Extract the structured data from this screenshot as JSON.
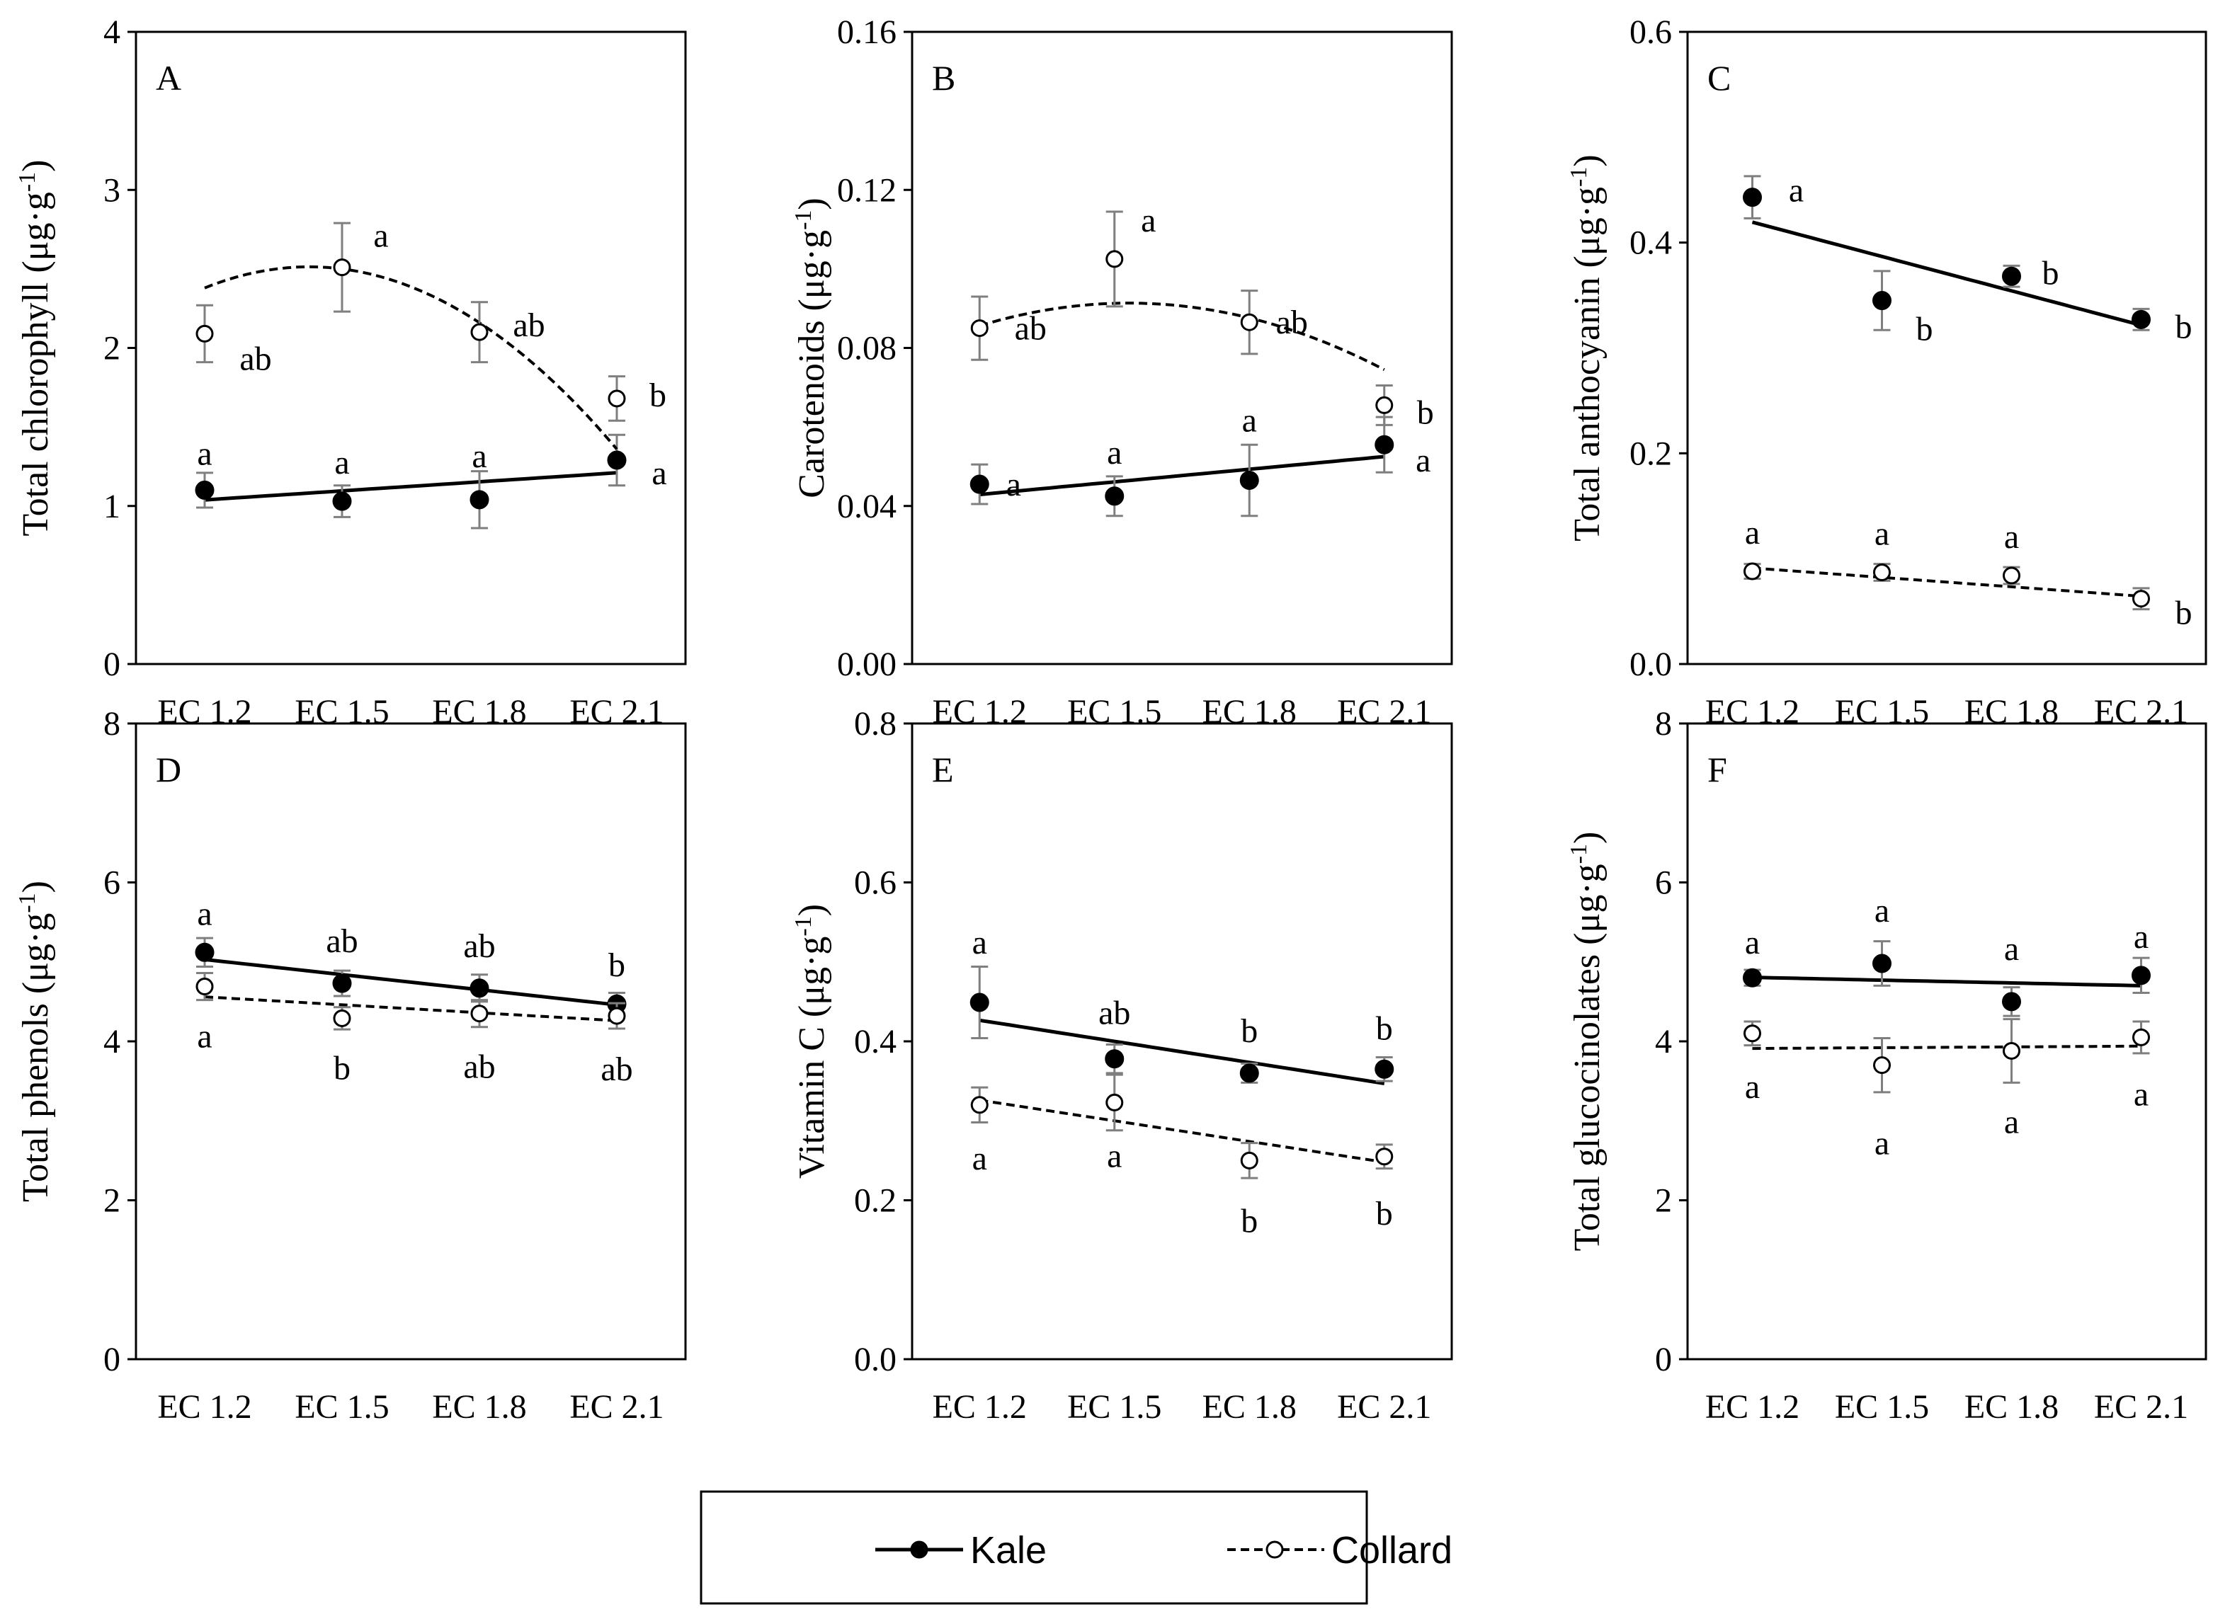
{
  "chart_data": [
    {
      "type": "line",
      "panel": "A",
      "ylabel": "Total chlorophyll",
      "yunit": "(μg·g-1)",
      "ylim": [
        0,
        4
      ],
      "yticks": [
        0,
        1,
        2,
        3,
        4
      ],
      "ytick_labels": [
        "0",
        "1",
        "2",
        "3",
        "4"
      ],
      "categories": [
        "EC 1.2",
        "EC 1.5",
        "EC 1.8",
        "EC 2.1"
      ],
      "series": [
        {
          "name": "Kale",
          "values": [
            1.1,
            1.03,
            1.04,
            1.29
          ],
          "errors": [
            0.11,
            0.1,
            0.18,
            0.16
          ],
          "letters": [
            "a",
            "a",
            "a",
            "a"
          ],
          "trend": "linear",
          "trend_coef": [
            0.981,
            0.0573
          ]
        },
        {
          "name": "Collard",
          "values": [
            2.09,
            2.51,
            2.1,
            1.68
          ],
          "errors": [
            0.18,
            0.28,
            0.19,
            0.14
          ],
          "letters": [
            "ab",
            "a",
            "ab",
            "b"
          ],
          "trend": "quadratic",
          "trend_coef": [
            1.8,
            0.81,
            -0.23
          ]
        }
      ]
    },
    {
      "type": "line",
      "panel": "B",
      "ylabel": "Carotenoids",
      "yunit": "(μg·g-1)",
      "ylim": [
        0,
        0.16
      ],
      "yticks": [
        0,
        0.04,
        0.08,
        0.12,
        0.16
      ],
      "ytick_labels": [
        "0.00",
        "0.04",
        "0.08",
        "0.12",
        "0.16"
      ],
      "categories": [
        "EC 1.2",
        "EC 1.5",
        "EC 1.8",
        "EC 2.1"
      ],
      "series": [
        {
          "name": "Kale",
          "values": [
            0.0455,
            0.0425,
            0.0465,
            0.0555
          ],
          "errors": [
            0.005,
            0.005,
            0.009,
            0.007
          ],
          "letters": [
            "a",
            "a",
            "a",
            "a"
          ],
          "trend": "linear",
          "trend_coef": [
            0.0397,
            0.0032
          ]
        },
        {
          "name": "Collard",
          "values": [
            0.085,
            0.1025,
            0.0865,
            0.0655
          ],
          "errors": [
            0.008,
            0.012,
            0.008,
            0.005
          ],
          "letters": [
            "ab",
            "a",
            "ab",
            "b"
          ],
          "trend": "quadratic",
          "trend_coef": [
            0.0705,
            0.0198,
            -0.0047
          ]
        }
      ]
    },
    {
      "type": "line",
      "panel": "C",
      "ylabel": "Total anthocyanin",
      "yunit": "(μg·g-1)",
      "ylim": [
        0,
        0.6
      ],
      "yticks": [
        0,
        0.2,
        0.4,
        0.6
      ],
      "ytick_labels": [
        "0.0",
        "0.2",
        "0.4",
        "0.6"
      ],
      "categories": [
        "EC 1.2",
        "EC 1.5",
        "EC 1.8",
        "EC 2.1"
      ],
      "series": [
        {
          "name": "Kale",
          "values": [
            0.443,
            0.345,
            0.368,
            0.327
          ],
          "errors": [
            0.02,
            0.028,
            0.01,
            0.01
          ],
          "letters": [
            "a",
            "b",
            "b",
            "b"
          ],
          "trend": "linear",
          "trend_coef": [
            0.452,
            -0.0326
          ]
        },
        {
          "name": "Collard",
          "values": [
            0.088,
            0.087,
            0.084,
            0.062
          ],
          "errors": [
            0.007,
            0.008,
            0.008,
            0.01
          ],
          "letters": [
            "a",
            "a",
            "a",
            "b"
          ],
          "trend": "linear",
          "trend_coef": [
            0.1,
            -0.0089
          ]
        }
      ]
    },
    {
      "type": "line",
      "panel": "D",
      "ylabel": "Total phenols",
      "yunit": "(μg·g-1)",
      "ylim": [
        0,
        8
      ],
      "yticks": [
        0,
        2,
        4,
        6,
        8
      ],
      "ytick_labels": [
        "0",
        "2",
        "4",
        "6",
        "8"
      ],
      "categories": [
        "EC 1.2",
        "EC 1.5",
        "EC 1.8",
        "EC 2.1"
      ],
      "series": [
        {
          "name": "Kale",
          "values": [
            5.12,
            4.73,
            4.67,
            4.47
          ],
          "errors": [
            0.18,
            0.16,
            0.17,
            0.14
          ],
          "letters": [
            "a",
            "ab",
            "ab",
            "b"
          ],
          "trend": "linear",
          "trend_coef": [
            5.22,
            -0.19
          ]
        },
        {
          "name": "Collard",
          "values": [
            4.69,
            4.29,
            4.35,
            4.32
          ],
          "errors": [
            0.17,
            0.14,
            0.17,
            0.16
          ],
          "letters": [
            "a",
            "b",
            "ab",
            "ab"
          ],
          "trend": "linear",
          "trend_coef": [
            4.66,
            -0.1
          ]
        }
      ]
    },
    {
      "type": "line",
      "panel": "E",
      "ylabel": "Vitamin C",
      "yunit": "(μg·g-1)",
      "ylim": [
        0,
        0.8
      ],
      "yticks": [
        0,
        0.2,
        0.4,
        0.6,
        0.8
      ],
      "ytick_labels": [
        "0.0",
        "0.2",
        "0.4",
        "0.6",
        "0.8"
      ],
      "categories": [
        "EC 1.2",
        "EC 1.5",
        "EC 1.8",
        "EC 2.1"
      ],
      "series": [
        {
          "name": "Kale",
          "values": [
            0.449,
            0.378,
            0.36,
            0.365
          ],
          "errors": [
            0.045,
            0.018,
            0.012,
            0.015
          ],
          "letters": [
            "a",
            "ab",
            "b",
            "b"
          ],
          "trend": "linear",
          "trend_coef": [
            0.453,
            -0.0265
          ]
        },
        {
          "name": "Collard",
          "values": [
            0.32,
            0.323,
            0.25,
            0.255
          ],
          "errors": [
            0.022,
            0.035,
            0.022,
            0.015
          ],
          "letters": [
            "a",
            "a",
            "b",
            "b"
          ],
          "trend": "linear",
          "trend_coef": [
            0.352,
            -0.026
          ]
        }
      ]
    },
    {
      "type": "line",
      "panel": "F",
      "ylabel": "Total glucocinolates",
      "yunit": "(μg·g-1)",
      "ylim": [
        0,
        8
      ],
      "yticks": [
        0,
        2,
        4,
        6,
        8
      ],
      "ytick_labels": [
        "0",
        "2",
        "4",
        "6",
        "8"
      ],
      "categories": [
        "EC 1.2",
        "EC 1.5",
        "EC 1.8",
        "EC 2.1"
      ],
      "series": [
        {
          "name": "Kale",
          "values": [
            4.8,
            4.98,
            4.5,
            4.83
          ],
          "errors": [
            0.1,
            0.28,
            0.18,
            0.22
          ],
          "letters": [
            "a",
            "a",
            "a",
            "a"
          ],
          "trend": "linear",
          "trend_coef": [
            4.84,
            -0.035
          ]
        },
        {
          "name": "Collard",
          "values": [
            4.1,
            3.7,
            3.88,
            4.05
          ],
          "errors": [
            0.15,
            0.34,
            0.4,
            0.2
          ],
          "letters": [
            "a",
            "a",
            "a",
            "a"
          ],
          "trend": "linear",
          "trend_coef": [
            3.9,
            0.01
          ]
        }
      ]
    }
  ],
  "legend": {
    "kale_label": "Kale",
    "collard_label": "Collard"
  }
}
